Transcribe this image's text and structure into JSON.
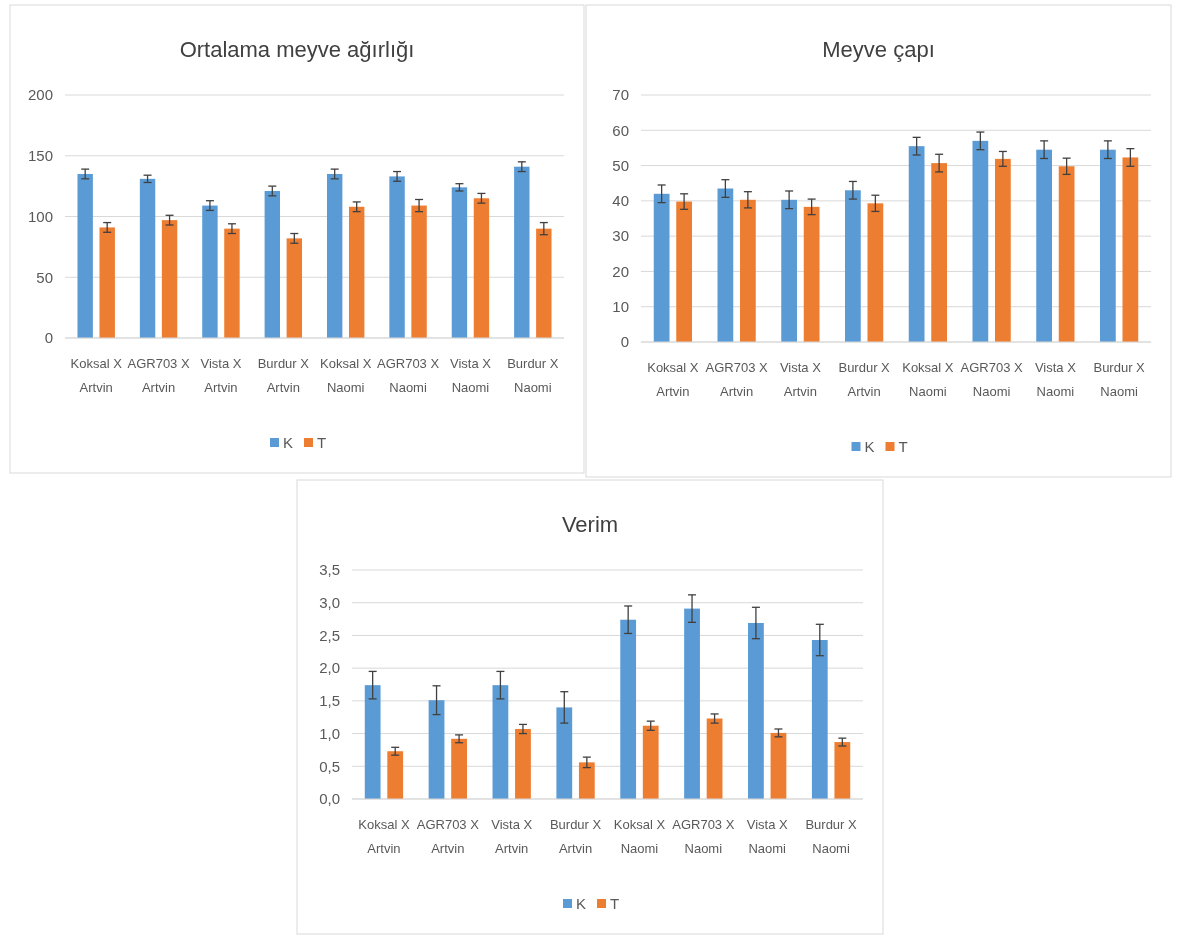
{
  "chart_data": [
    {
      "type": "bar",
      "title": "Ortalama meyve ağırlığı",
      "categories": [
        "Koksal X Artvin",
        "AGR703 X Artvin",
        "Vista X Artvin",
        "Burdur X Artvin",
        "Koksal X Naomi",
        "AGR703 X Naomi",
        "Vista X Naomi",
        "Burdur X Naomi"
      ],
      "series": [
        {
          "name": "K",
          "color": "#5b9bd5",
          "values": [
            135,
            131,
            109,
            121,
            135,
            133,
            124,
            141
          ],
          "errors": [
            4,
            3,
            4,
            4,
            4,
            4,
            3,
            4
          ]
        },
        {
          "name": "T",
          "color": "#ed7d31",
          "values": [
            91,
            97,
            90,
            82,
            108,
            109,
            115,
            90
          ],
          "errors": [
            4,
            4,
            4,
            4,
            4,
            5,
            4,
            5
          ]
        }
      ],
      "ylim": [
        0,
        200
      ],
      "yticks": [
        0,
        50,
        100,
        150,
        200
      ],
      "grid": "y",
      "legend": "bottom"
    },
    {
      "type": "bar",
      "title": "Meyve çapı",
      "categories": [
        "Koksal X Artvin",
        "AGR703 X Artvin",
        "Vista X Artvin",
        "Burdur X Artvin",
        "Koksal X Naomi",
        "AGR703 X Naomi",
        "Vista X Naomi",
        "Burdur X Naomi"
      ],
      "series": [
        {
          "name": "K",
          "color": "#5b9bd5",
          "values": [
            42,
            43.5,
            40.3,
            43,
            55.5,
            57,
            54.5,
            54.5
          ],
          "errors": [
            2.5,
            2.5,
            2.5,
            2.5,
            2.5,
            2.5,
            2.5,
            2.5
          ]
        },
        {
          "name": "T",
          "color": "#ed7d31",
          "values": [
            39.8,
            40.3,
            38.3,
            39.3,
            50.7,
            51.9,
            49.8,
            52.3
          ],
          "errors": [
            2.2,
            2.3,
            2.2,
            2.3,
            2.5,
            2.1,
            2.3,
            2.5
          ]
        }
      ],
      "ylim": [
        0,
        70
      ],
      "yticks": [
        0,
        10,
        20,
        30,
        40,
        50,
        60,
        70
      ],
      "grid": "y",
      "legend": "bottom"
    },
    {
      "type": "bar",
      "title": "Verim",
      "categories": [
        "Koksal X Artvin",
        "AGR703 X Artvin",
        "Vista X Artvin",
        "Burdur X Artvin",
        "Koksal X Naomi",
        "AGR703 X Naomi",
        "Vista X Naomi",
        "Burdur X Naomi"
      ],
      "series": [
        {
          "name": "K",
          "color": "#5b9bd5",
          "values": [
            1.74,
            1.51,
            1.74,
            1.4,
            2.74,
            2.91,
            2.69,
            2.43
          ],
          "errors": [
            0.21,
            0.22,
            0.21,
            0.24,
            0.21,
            0.21,
            0.24,
            0.24
          ]
        },
        {
          "name": "T",
          "color": "#ed7d31",
          "values": [
            0.73,
            0.92,
            1.07,
            0.56,
            1.12,
            1.23,
            1.01,
            0.87
          ],
          "errors": [
            0.06,
            0.06,
            0.07,
            0.08,
            0.07,
            0.07,
            0.06,
            0.06
          ]
        }
      ],
      "ylim": [
        0,
        3.5
      ],
      "yticks": [
        {
          "value": 0,
          "label": "0,0"
        },
        {
          "value": 0.5,
          "label": "0,5"
        },
        {
          "value": 1,
          "label": "1,0"
        },
        {
          "value": 1.5,
          "label": "1,5"
        },
        {
          "value": 2,
          "label": "2,0"
        },
        {
          "value": 2.5,
          "label": "2,5"
        },
        {
          "value": 3,
          "label": "3,0"
        },
        {
          "value": 3.5,
          "label": "3,5"
        }
      ],
      "grid": "y",
      "legend": "bottom"
    }
  ]
}
